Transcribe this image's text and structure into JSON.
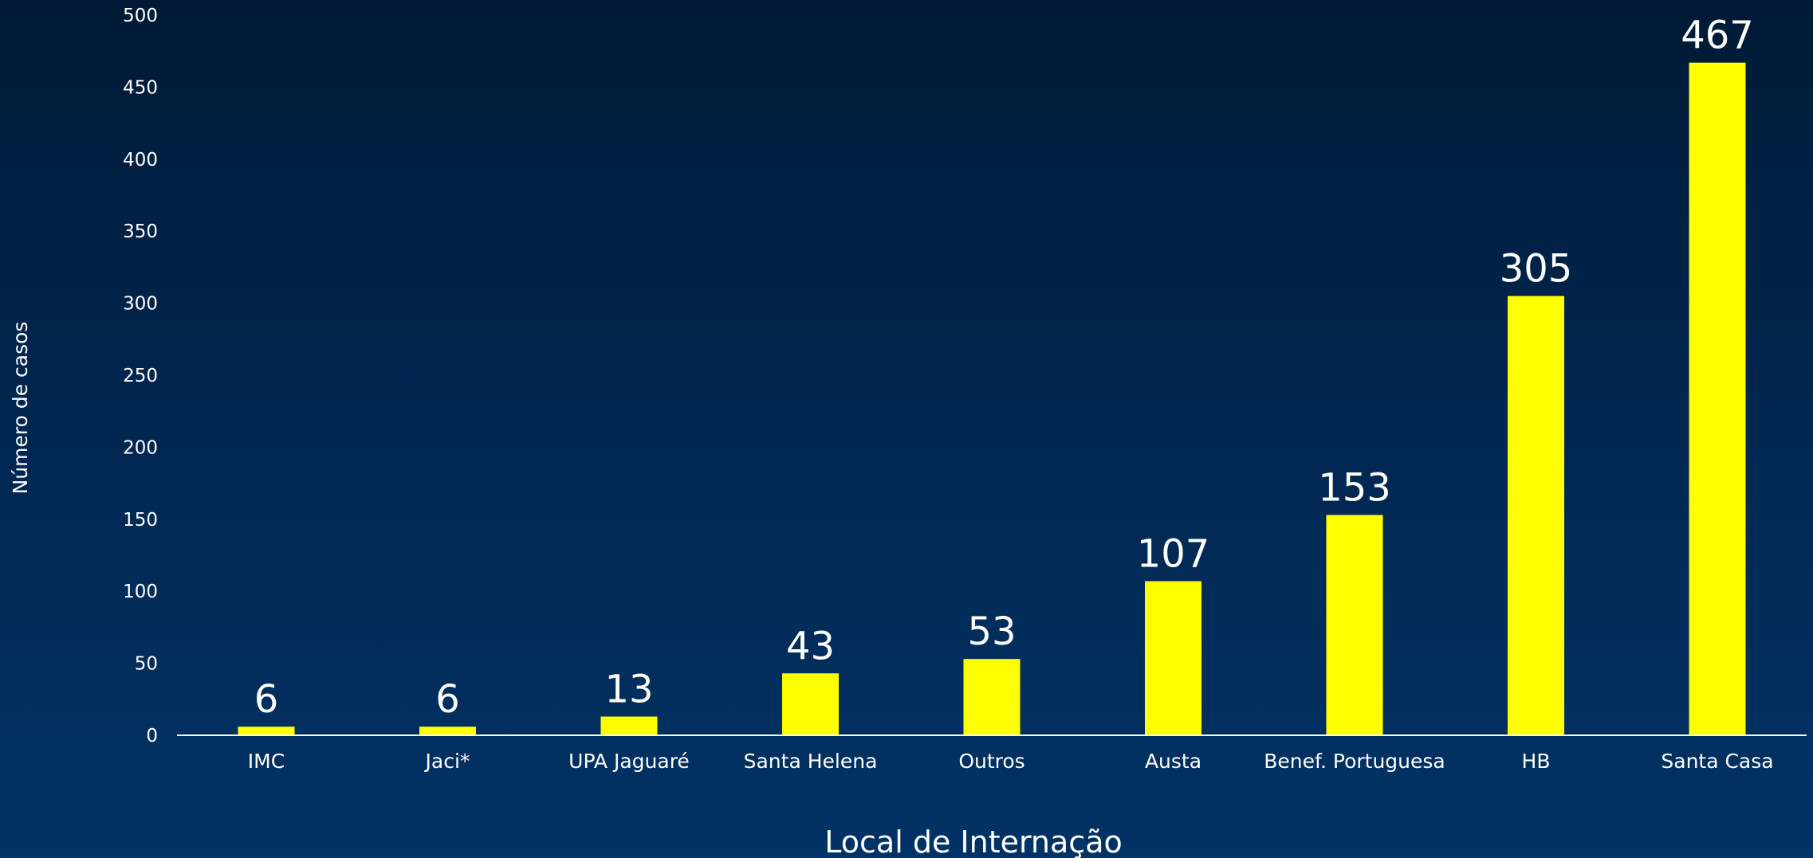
{
  "chart_data": {
    "type": "bar",
    "title": "",
    "xlabel": "Local de Internação",
    "ylabel": "Número de casos",
    "categories": [
      "IMC",
      "Jaci*",
      "UPA Jaguaré",
      "Santa Helena",
      "Outros",
      "Austa",
      "Benef. Portuguesa",
      "HB",
      "Santa Casa"
    ],
    "values": [
      6,
      6,
      13,
      43,
      53,
      107,
      153,
      305,
      467
    ],
    "data_labels": [
      "6",
      "6",
      "13",
      "43",
      "53",
      "107",
      "153",
      "305",
      "467"
    ],
    "ylim": [
      0,
      500
    ],
    "yticks": [
      "0",
      "50",
      "100",
      "150",
      "200",
      "250",
      "300",
      "350",
      "400",
      "450",
      "500"
    ],
    "grid": false,
    "legend": "none",
    "bar_color": "#ffff00",
    "axis_color": "#ffffff",
    "background_color": "#012a55"
  }
}
